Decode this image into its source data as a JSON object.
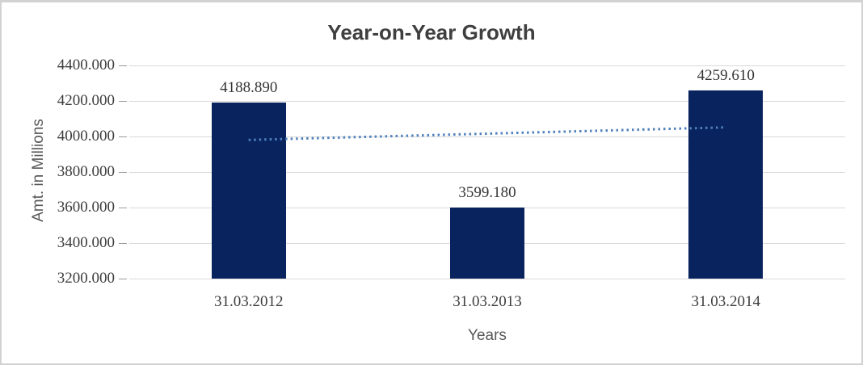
{
  "chart_data": {
    "type": "bar",
    "title": "Year-on-Year Growth",
    "xlabel": "Years",
    "ylabel": "Amt. in Millions",
    "categories": [
      "31.03.2012",
      "31.03.2013",
      "31.03.2014"
    ],
    "values": [
      4188.89,
      3599.18,
      4259.61
    ],
    "value_labels": [
      "4188.890",
      "3599.180",
      "4259.610"
    ],
    "ylim": [
      3200,
      4400
    ],
    "ytick_step": 200,
    "ytick_labels": [
      "3200.000",
      "3400.000",
      "3600.000",
      "3800.000",
      "4000.000",
      "4200.000",
      "4400.000"
    ],
    "grid": true,
    "legend": "none",
    "bar_color": "#08235e",
    "gridline_color": "#d9d9d9",
    "trendline": {
      "kind": "linear",
      "style": "dotted",
      "color": "#4f81bd",
      "start_value": 3980.5,
      "end_value": 4051.3
    }
  }
}
